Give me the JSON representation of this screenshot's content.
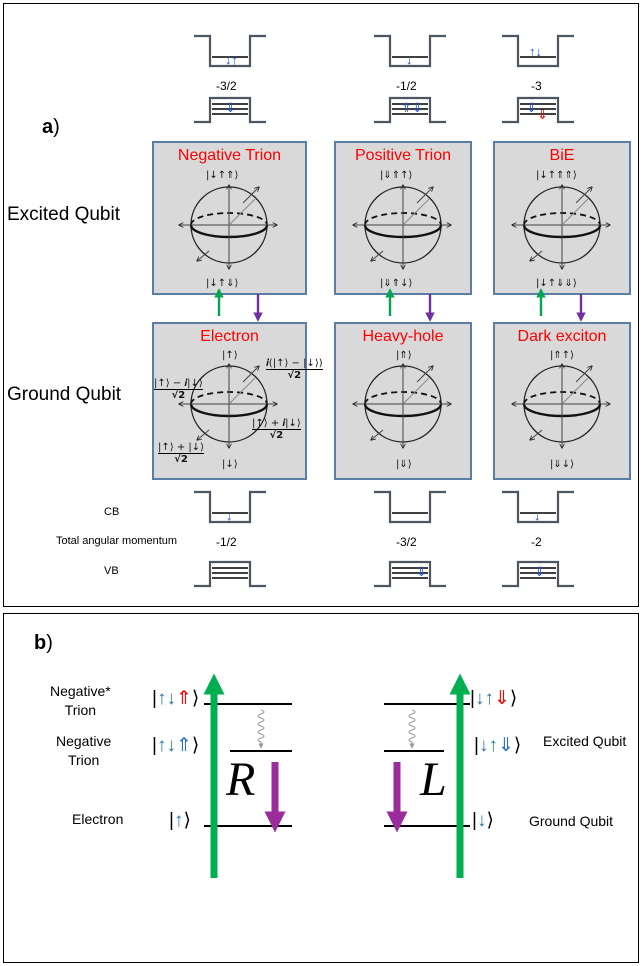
{
  "panel_a": {
    "label": "a",
    "paren": ")",
    "row_labels": {
      "excited": "Excited Qubit",
      "ground": "Ground Qubit"
    },
    "excited_boxes": [
      {
        "title": "Negative Trion",
        "top_ket": "|↓↑⇑⟩",
        "bottom_ket": "|↓↑⇓⟩"
      },
      {
        "title": "Positive Trion",
        "top_ket": "|⇓⇑↑⟩",
        "bottom_ket": "|⇓⇑↓⟩"
      },
      {
        "title": "BiE",
        "top_ket": "|↓↑⇑⇑⟩",
        "bottom_ket": "|↓↑⇓⇓⟩"
      }
    ],
    "ground_boxes": [
      {
        "title": "Electron",
        "top_ket": "|↑⟩",
        "bottom_ket": "|↓⟩"
      },
      {
        "title": "Heavy-hole",
        "top_ket": "|⇑⟩",
        "bottom_ket": "|⇓⟩"
      },
      {
        "title": "Dark exciton",
        "top_ket": "|⇑↑⟩",
        "bottom_ket": "|⇓↓⟩"
      }
    ],
    "electron_state_labels": {
      "left_num": "|↑⟩ − 𝒊|↓⟩",
      "left_den": "√2",
      "right_top_num": "𝒊(|↑⟩ − |↓⟩)",
      "right_top_den": "√2",
      "right_bot_num": "|↑⟩ + 𝒊|↓⟩",
      "right_bot_den": "√2",
      "bottom_left_num": "|↑⟩ + |↓⟩",
      "bottom_left_den": "√2"
    },
    "top_momenta": [
      "-3/2",
      "-1/2",
      "-3"
    ],
    "bottom_momenta": [
      "-1/2",
      "-3/2",
      "-2"
    ],
    "cb_label": "CB",
    "vb_label": "VB",
    "total_am_label": "Total angular momentum",
    "colors": {
      "box_fill": "#d9d9d9",
      "box_border": "#5b7ea6",
      "title": "#ff0000",
      "up_arrow": "#00a651",
      "down_arrow": "#7030a0"
    }
  },
  "panel_b": {
    "label": "b",
    "paren": ")",
    "left_labels": {
      "neg_star_1": "Negative*",
      "neg_star_2": "Trion",
      "neg_1": "Negative",
      "neg_2": "Trion",
      "electron": "Electron"
    },
    "right_labels": {
      "excited": "Excited Qubit",
      "ground": "Ground Qubit"
    },
    "R": "R",
    "L": "L",
    "colors": {
      "absorb": "#00b050",
      "emit": "#9b2c9b",
      "ket_blue": "#2e75b6",
      "ket_red": "#ff0000"
    }
  }
}
